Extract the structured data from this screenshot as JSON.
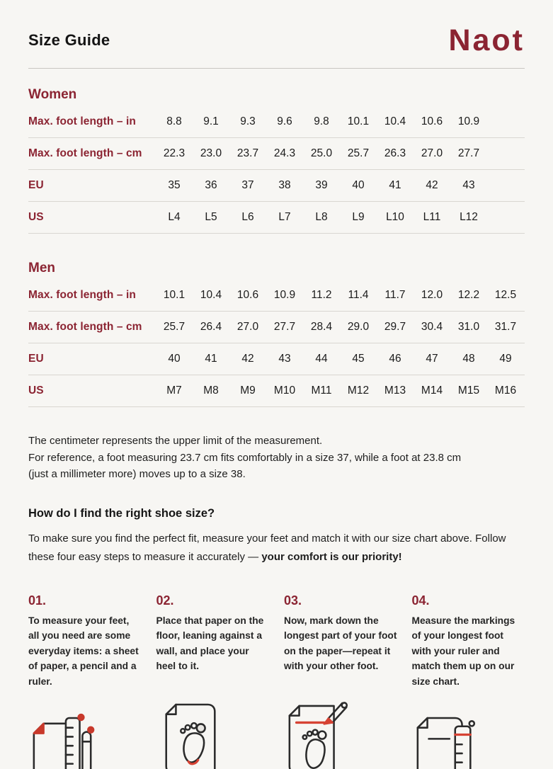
{
  "page": {
    "title": "Size Guide",
    "brand": "Naot"
  },
  "colors": {
    "maroon": "#8b2432",
    "icon_red": "#d64233",
    "text": "#1d1d1d",
    "background": "#f7f6f3",
    "divider": "#d9d6d1"
  },
  "women": {
    "heading": "Women",
    "rows": [
      {
        "label": "Max. foot length – in",
        "values": [
          "8.8",
          "9.1",
          "9.3",
          "9.6",
          "9.8",
          "10.1",
          "10.4",
          "10.6",
          "10.9"
        ]
      },
      {
        "label": "Max. foot length – cm",
        "values": [
          "22.3",
          "23.0",
          "23.7",
          "24.3",
          "25.0",
          "25.7",
          "26.3",
          "27.0",
          "27.7"
        ]
      },
      {
        "label": "EU",
        "values": [
          "35",
          "36",
          "37",
          "38",
          "39",
          "40",
          "41",
          "42",
          "43"
        ]
      },
      {
        "label": "US",
        "values": [
          "L4",
          "L5",
          "L6",
          "L7",
          "L8",
          "L9",
          "L10",
          "L11",
          "L12"
        ]
      }
    ]
  },
  "men": {
    "heading": "Men",
    "rows": [
      {
        "label": "Max. foot length – in",
        "values": [
          "10.1",
          "10.4",
          "10.6",
          "10.9",
          "11.2",
          "11.4",
          "11.7",
          "12.0",
          "12.2",
          "12.5"
        ]
      },
      {
        "label": "Max. foot length – cm",
        "values": [
          "25.7",
          "26.4",
          "27.0",
          "27.7",
          "28.4",
          "29.0",
          "29.7",
          "30.4",
          "31.0",
          "31.7"
        ]
      },
      {
        "label": "EU",
        "values": [
          "40",
          "41",
          "42",
          "43",
          "44",
          "45",
          "46",
          "47",
          "48",
          "49"
        ]
      },
      {
        "label": "US",
        "values": [
          "M7",
          "M8",
          "M9",
          "M10",
          "M11",
          "M12",
          "M13",
          "M14",
          "M15",
          "M16"
        ]
      }
    ]
  },
  "notes": {
    "line1": "The centimeter represents the upper limit of the measurement.",
    "line2": "For reference, a foot measuring 23.7 cm fits comfortably in a size 37, while a foot at 23.8 cm",
    "line3": "(just a millimeter more) moves up to a size 38."
  },
  "how_to": {
    "heading": "How do I find the right shoe size?",
    "intro_regular": "To make sure you find the perfect fit, measure your feet and match it with our size chart above. Follow these four easy steps to measure it accurately — ",
    "intro_bold": "your comfort is our priority!"
  },
  "steps": [
    {
      "number": "01.",
      "text": "To measure your feet, all you need are some everyday items: a sheet of paper, a pencil and a ruler.",
      "icon": "paper-pencil-ruler-icon"
    },
    {
      "number": "02.",
      "text": "Place that paper on the floor, leaning against a wall, and place your heel to it.",
      "icon": "paper-footprint-heel-icon"
    },
    {
      "number": "03.",
      "text": "Now, mark down the longest part of your foot on the paper—repeat it with your other foot.",
      "icon": "pencil-mark-footprint-icon"
    },
    {
      "number": "04.",
      "text": "Measure the markings of your longest foot with your ruler and match them up on our size chart.",
      "icon": "paper-ruler-measure-icon"
    }
  ]
}
